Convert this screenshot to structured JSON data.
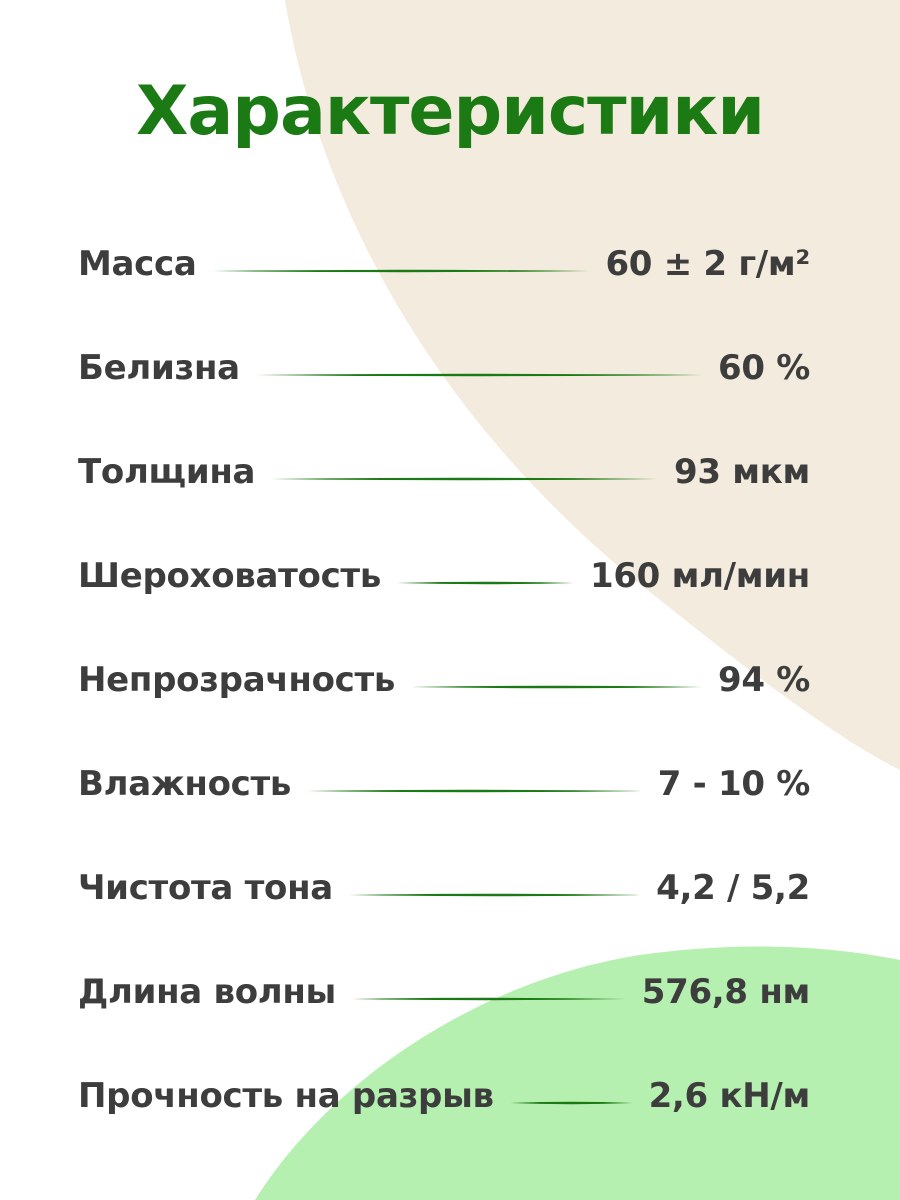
{
  "title": "Характеристики",
  "colors": {
    "title": "#1b7a13",
    "text": "#3d3d3d",
    "leader_line": "#1b7a13",
    "beige_shape": "#f3ebdd",
    "green_shape": "#b6f0b0"
  },
  "specs": [
    {
      "label": "Масса",
      "value": "60 ± 2 г/м²"
    },
    {
      "label": "Белизна",
      "value": "60 %"
    },
    {
      "label": "Толщина",
      "value": "93 мкм"
    },
    {
      "label": "Шероховатость",
      "value": "160 мл/мин"
    },
    {
      "label": "Непрозрачность",
      "value": "94 %"
    },
    {
      "label": "Влажность",
      "value": "7 - 10 %"
    },
    {
      "label": "Чистота тона",
      "value": "4,2 / 5,2"
    },
    {
      "label": "Длина волны",
      "value": "576,8 нм"
    },
    {
      "label": "Прочность на разрыв",
      "value": "2,6 кН/м"
    }
  ]
}
